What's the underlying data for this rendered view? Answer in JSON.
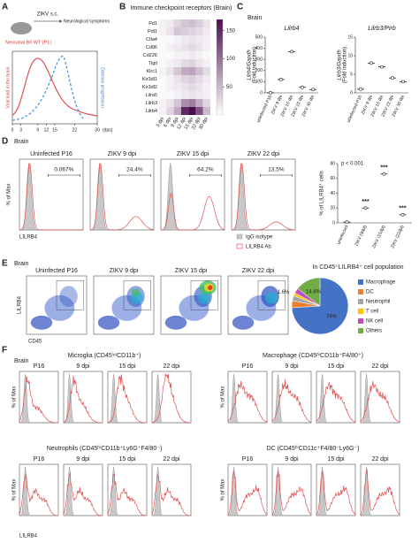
{
  "a": {
    "label": "A",
    "injection": "ZIKV s.c.",
    "outcome": "Neurological symptoms",
    "mouse": "Neonatal B6 WT (P1)",
    "y_label": "Viral load in the brain",
    "y2_label": "Disease progression",
    "xlim": [
      0,
      30
    ],
    "xticks": [
      0,
      3,
      9,
      12,
      15,
      22,
      30
    ],
    "x_unit": "(dps)"
  },
  "b": {
    "label": "B",
    "title": "Immune checkpoint receptors (Brain)",
    "rows": [
      "Pd1",
      "Pdl1",
      "Ctla4",
      "Cd96",
      "Cd226",
      "Tigit",
      "Klrc1",
      "Kir3dl1",
      "Kir3dl2",
      "Lilra5",
      "Lilrb3",
      "Lilrb4"
    ],
    "columns": [
      "3 dpi",
      "6 dpi",
      "9 dpi",
      "12 dpi",
      "15 dpi",
      "22 dpi",
      "30 dpi"
    ],
    "values": [
      [
        10,
        15,
        30,
        40,
        45,
        35,
        20
      ],
      [
        10,
        20,
        40,
        35,
        30,
        25,
        15
      ],
      [
        5,
        5,
        10,
        15,
        20,
        15,
        10
      ],
      [
        5,
        10,
        15,
        20,
        25,
        20,
        10
      ],
      [
        5,
        5,
        10,
        10,
        15,
        10,
        5
      ],
      [
        5,
        10,
        15,
        25,
        30,
        20,
        10
      ],
      [
        10,
        20,
        40,
        60,
        65,
        45,
        25
      ],
      [
        5,
        10,
        20,
        30,
        35,
        25,
        15
      ],
      [
        5,
        10,
        15,
        20,
        25,
        20,
        10
      ],
      [
        5,
        5,
        10,
        15,
        20,
        15,
        10
      ],
      [
        10,
        20,
        40,
        80,
        90,
        60,
        30
      ],
      [
        10,
        30,
        60,
        150,
        170,
        120,
        50
      ]
    ],
    "colorbar_lim": [
      0,
      170
    ],
    "colorbar_ticks": [
      50,
      100,
      150
    ]
  },
  "c": {
    "label": "C",
    "subtitle": "Brain",
    "charts": [
      {
        "type": "scatter",
        "title": "Lilrb4",
        "y_label": "Lilrb4/Gapdh",
        "y_label_2": "(Fold induction)",
        "categories": [
          "uninfected P16",
          "ZIKV 9 dpi",
          "ZIKV 15 dpi",
          "ZIKV 22 dpi",
          "ZIKV 30 dpi"
        ],
        "values": [
          1,
          120,
          370,
          50,
          30
        ],
        "ylim": [
          0,
          500
        ],
        "yticks": [
          0,
          100,
          200,
          300,
          400,
          500
        ]
      },
      {
        "type": "scatter",
        "title": "Lilrb3/Pirb",
        "y_label": "Lilrb3/Gapdh",
        "y_label_2": "(Fold induction)",
        "categories": [
          "uninfected P16",
          "ZIKV 9 dpi",
          "ZIKV 15 dpi",
          "ZIKV 22 dpi",
          "ZIKV 30 dpi"
        ],
        "values": [
          1,
          8,
          7,
          4,
          3
        ],
        "ylim": [
          0,
          15
        ],
        "yticks": [
          0,
          5,
          10,
          15
        ]
      }
    ]
  },
  "d": {
    "label": "D",
    "subtitle": "Brain",
    "y_label": "% of Max",
    "x_label": "LILRB4",
    "plots": [
      {
        "title": "Uninfected P16",
        "gate": "0.067%"
      },
      {
        "title": "ZIKV 9 dpi",
        "gate": "24.4%"
      },
      {
        "title": "ZIKV 15 dpi",
        "gate": "64.2%"
      },
      {
        "title": "ZIKV 22 dpi",
        "gate": "13.5%"
      }
    ],
    "legend": [
      "IgG isotype",
      "LILRB4 Ab"
    ],
    "summary": {
      "type": "scatter",
      "y_label": "% of LILRB4⁺ cells",
      "categories": [
        "uninfected",
        "ZIKV (9dpi)",
        "ZIKV (15dpi)",
        "ZIKV (22dpi)"
      ],
      "values": [
        1,
        20,
        66,
        11
      ],
      "ylim": [
        0,
        80
      ],
      "yticks": [
        0,
        20,
        40,
        60,
        80
      ],
      "p_value": "p < 0.001",
      "significance": [
        null,
        "***",
        "***",
        "***"
      ]
    }
  },
  "e": {
    "label": "E",
    "subtitle": "Brain",
    "y_label": "LILRB4",
    "x_label": "CD45",
    "plots": [
      "Uninfected P16",
      "ZIKV 9 dpi",
      "ZIKV 15 dpi",
      "ZIKV 22 dpi"
    ],
    "pie": {
      "type": "pie",
      "title": "In CD45⁺LILRB4⁺ cell population",
      "categories": [
        "Macrophage",
        "DC",
        "Neutrophil",
        "T cell",
        "NK cell",
        "Others"
      ],
      "values": [
        74,
        4,
        3,
        1.6,
        3,
        14.4
      ],
      "value_labels": [
        "74%",
        null,
        null,
        "1.6%",
        null,
        "14.4%"
      ],
      "colors": [
        "#4472c4",
        "#ed7d31",
        "#a5a5a5",
        "#ffc000",
        "#c04fc0",
        "#70ad47"
      ]
    }
  },
  "f": {
    "label": "F",
    "subtitle": "Brain",
    "y_label": "% of Max",
    "x_label": "LILRB4",
    "groups": [
      {
        "title": "Microglia (CD45ⁱⁿᵗCD11b⁺)",
        "plots": [
          "P16",
          "9 dpi",
          "15 dpi",
          "22 dpi"
        ]
      },
      {
        "title": "Macrophage (CD45ʰⁱCD11b⁺F4/80⁺)",
        "plots": [
          "P16",
          "9 dpi",
          "15 dpi",
          "22 dpi"
        ]
      },
      {
        "title": "Neutrophils (CD45ʰⁱCD11b⁺Ly6G⁺F4/80⁻)",
        "plots": [
          "P16",
          "9 dpi",
          "15 dpi",
          "22 dpi"
        ]
      },
      {
        "title": "DC (CD45ʰⁱCD11c⁺F4/80⁻Ly6G⁻)",
        "plots": [
          "P16",
          "9 dpi",
          "15 dpi",
          "22 dpi"
        ]
      }
    ]
  }
}
